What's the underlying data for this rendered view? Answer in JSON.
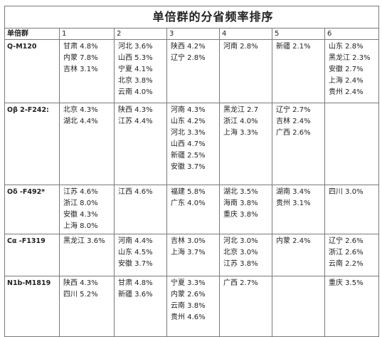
{
  "title": "单倍群的分省频率排序",
  "header": {
    "first": "单倍群",
    "columns": [
      "1",
      "2",
      "3",
      "4",
      "5",
      "6"
    ]
  },
  "rows": [
    {
      "label": "Q-M120",
      "cells": [
        [
          "甘肃 4.8%",
          "内蒙 7.8%",
          "吉林 3.1%"
        ],
        [
          "河北 3.6%",
          "山西 5.3%",
          "宁夏 4.1%",
          "北京 3.8%",
          "云南 4.0%"
        ],
        [
          "陕西 4.2%",
          "辽宁 2.8%"
        ],
        [
          "河南 2.8%"
        ],
        [
          "新疆 2.1%"
        ],
        [
          "山东 2.8%",
          "黑龙江 2.3%",
          "安徽 2.7%",
          "上海 2.4%",
          "贵州 2.4%"
        ]
      ]
    },
    {
      "label": "Oβ 2-F242‌:",
      "cells": [
        [
          "北京 4.3%",
          "湖北 4.4%"
        ],
        [
          "陕西 4.3%",
          "江苏 4.4%"
        ],
        [
          "河南 4.3%",
          "山东 4.2%",
          "河北 3.3%",
          "山西 4.7%",
          "新疆 2.5%",
          "安徽 3.7%"
        ],
        [
          "黑龙江 2.7",
          "浙江 4.0%",
          "上海 3.3%"
        ],
        [
          "辽宁 2.7%",
          "吉林 2.4%",
          "广西 2.6%"
        ],
        []
      ]
    },
    {
      "label": "Oδ -F492*",
      "cells": [
        [
          "江苏 4.6%",
          "浙江 8.0%",
          "安徽 4.3%",
          "上海 8.0%"
        ],
        [
          "江西 4.6%"
        ],
        [
          "福建 5.8%",
          "广东 4.0%"
        ],
        [
          "湖北 3.5%",
          "海南 3.8%",
          "重庆 3.8%"
        ],
        [
          "湖南 3.4%",
          "贵州 3.1%"
        ],
        [
          "四川 3.0%"
        ]
      ]
    },
    {
      "label": "Cα -F1319",
      "cells": [
        [
          "黑龙江 3.6%"
        ],
        [
          "河南 4.4%",
          "山东 4.5%",
          "安徽 3.7%"
        ],
        [
          "吉林 3.0%",
          "上海 3.7%"
        ],
        [
          "河北 3.0%",
          "北京 3.0%",
          "江苏 3.8%"
        ],
        [
          "内蒙 2.4%"
        ],
        [
          "辽宁 2.6%",
          "浙江 2.6%",
          "云南 2.2%"
        ]
      ]
    },
    {
      "label": "N1b-M1819",
      "cells": [
        [
          "陕西 4.3%",
          "四川 5.2%"
        ],
        [
          "甘肃 4.8%",
          "新疆 3.6%"
        ],
        [
          "宁夏 3.3%",
          "内蒙 2.6%",
          "云南 3.8%",
          "贵州 4.6%"
        ],
        [
          "广西 2.7%"
        ],
        [],
        [
          "重庆 3.5%"
        ]
      ]
    }
  ]
}
